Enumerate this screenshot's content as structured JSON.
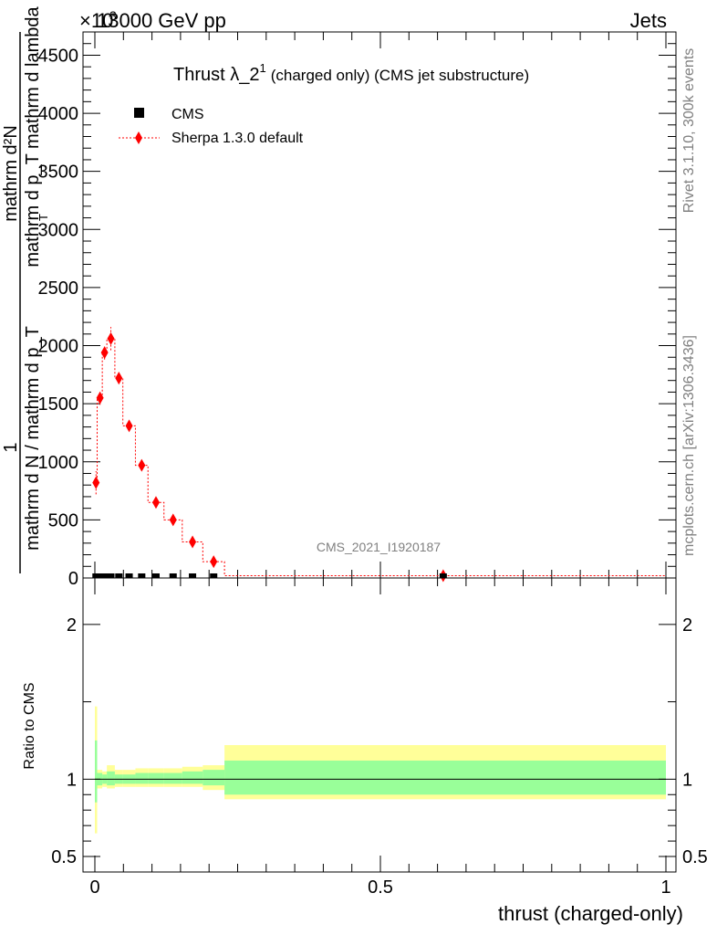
{
  "header": {
    "left": "13000 GeV pp",
    "right": "Jets",
    "exponent_base": "×10",
    "exponent": "3"
  },
  "side": {
    "rivet": "Rivet 3.1.10,  300k events",
    "mcplots": "mcplots.cern.ch [arXiv:1306.3436]"
  },
  "watermark": "CMS_2021_I1920187",
  "main_plot": {
    "title_main": "Thrust λ_2",
    "title_sup": "1",
    "title_rest": "(charged only) (CMS jet substructure)",
    "ylabel_one": "1",
    "ylabel_line1": "mathrm d N / mathrm d p_T",
    "ylabel_line2": "mathrm d²N",
    "ylabel_line3": "mathrm d p_T mathrm d lambda",
    "ylabel_sub": "T",
    "legend": {
      "data_label": "CMS",
      "mc_label": "Sherpa 1.3.0 default"
    }
  },
  "ratio_plot": {
    "ylabel": "Ratio to CMS",
    "xlabel": "thrust (charged-only)"
  },
  "colors": {
    "mc": "#ff0000",
    "band_inner": "#99ff99",
    "band_outer": "#ffff99",
    "data": "#000000"
  },
  "chart_data": [
    {
      "type": "line",
      "title": "Thrust λ_2^1 (charged only) (CMS jet substructure)",
      "xlim": [
        0,
        1
      ],
      "ylim": [
        0,
        4700
      ],
      "y_scale_factor": 1000,
      "yticks": [
        0,
        500,
        1000,
        1500,
        2000,
        2500,
        3000,
        3500,
        4000,
        4500
      ],
      "ytick_labels": [
        "0",
        "500",
        "1000",
        "1500",
        "2000",
        "2500",
        "3000",
        "3500",
        "4000",
        "4500"
      ],
      "xticks": [
        0,
        0.5,
        1
      ],
      "xtick_labels": [
        "0",
        "0.5",
        "1"
      ],
      "series": [
        {
          "name": "Sherpa 1.3.0 default",
          "x": [
            0.002,
            0.009,
            0.017,
            0.028,
            0.042,
            0.06,
            0.082,
            0.107,
            0.137,
            0.171,
            0.208,
            0.61
          ],
          "y": [
            820,
            1550,
            1940,
            2060,
            1720,
            1310,
            970,
            650,
            500,
            310,
            140,
            20
          ],
          "yerr": [
            100,
            60,
            60,
            100,
            50,
            40,
            30,
            25,
            20,
            15,
            10,
            5
          ],
          "bin_edges": [
            0,
            0.004,
            0.013,
            0.021,
            0.035,
            0.049,
            0.071,
            0.093,
            0.121,
            0.153,
            0.189,
            0.227,
            1.0
          ]
        },
        {
          "name": "CMS",
          "x": [
            0.002,
            0.009,
            0.017,
            0.028,
            0.042,
            0.06,
            0.082,
            0.107,
            0.137,
            0.171,
            0.208,
            0.61
          ],
          "y": [
            0,
            0,
            0,
            0,
            0,
            0,
            0,
            0,
            0,
            0,
            0,
            0
          ]
        }
      ]
    },
    {
      "type": "area",
      "title": "Ratio to CMS",
      "xlabel": "thrust (charged-only)",
      "ylabel": "Ratio to CMS",
      "xlim": [
        0,
        1
      ],
      "ylim": [
        0.4,
        2.3
      ],
      "yticks": [
        0.5,
        1,
        2
      ],
      "ytick_labels": [
        "0.5",
        "1",
        "2"
      ],
      "xticks": [
        0,
        0.5,
        1
      ],
      "xtick_labels": [
        "0",
        "0.5",
        "1"
      ],
      "series": [
        {
          "name": "inner uncertainty band",
          "bin_edges": [
            0,
            0.004,
            0.013,
            0.021,
            0.035,
            0.049,
            0.071,
            0.093,
            0.121,
            0.153,
            0.189,
            0.227,
            1.0
          ],
          "low": [
            0.85,
            0.96,
            0.97,
            0.96,
            0.97,
            0.97,
            0.97,
            0.97,
            0.97,
            0.97,
            0.96,
            0.9
          ],
          "high": [
            1.25,
            1.04,
            1.03,
            1.05,
            1.03,
            1.03,
            1.04,
            1.04,
            1.04,
            1.05,
            1.06,
            1.12
          ]
        },
        {
          "name": "outer uncertainty band",
          "bin_edges": [
            0,
            0.004,
            0.013,
            0.021,
            0.035,
            0.049,
            0.071,
            0.093,
            0.121,
            0.153,
            0.189,
            0.227,
            1.0
          ],
          "low": [
            0.65,
            0.94,
            0.95,
            0.94,
            0.95,
            0.95,
            0.95,
            0.95,
            0.95,
            0.95,
            0.93,
            0.87
          ],
          "high": [
            1.47,
            1.06,
            1.05,
            1.09,
            1.06,
            1.06,
            1.07,
            1.07,
            1.07,
            1.08,
            1.09,
            1.22
          ]
        },
        {
          "name": "reference line",
          "y": [
            1,
            1
          ]
        }
      ]
    }
  ]
}
